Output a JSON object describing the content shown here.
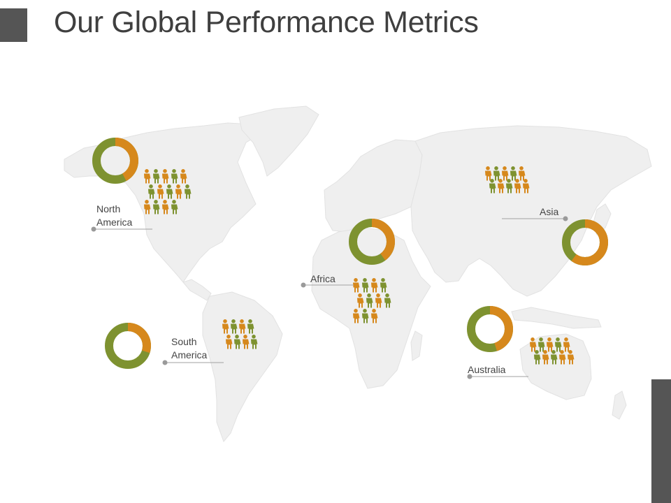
{
  "title": "Our Global Performance Metrics",
  "colors": {
    "orange": "#D6881C",
    "green": "#7E9230",
    "map_fill": "#EFEFEF",
    "map_border": "#E2E2E2",
    "accent_tab": "#555555"
  },
  "regions": [
    {
      "id": "north-america",
      "label_lines": [
        "North",
        "America"
      ],
      "share_orange": 0.42,
      "people": {
        "orange": 7,
        "green": 7
      }
    },
    {
      "id": "south-america",
      "label_lines": [
        "South",
        "America"
      ],
      "share_orange": 0.3,
      "people": {
        "orange": 4,
        "green": 4
      }
    },
    {
      "id": "africa",
      "label_lines": [
        "Africa"
      ],
      "share_orange": 0.4,
      "people": {
        "orange": 6,
        "green": 5
      }
    },
    {
      "id": "asia",
      "label_lines": [
        "Asia"
      ],
      "share_orange": 0.6,
      "people": {
        "orange": 6,
        "green": 4
      }
    },
    {
      "id": "australia",
      "label_lines": [
        "Australia"
      ],
      "share_orange": 0.45,
      "people": {
        "orange": 6,
        "green": 4
      }
    }
  ]
}
